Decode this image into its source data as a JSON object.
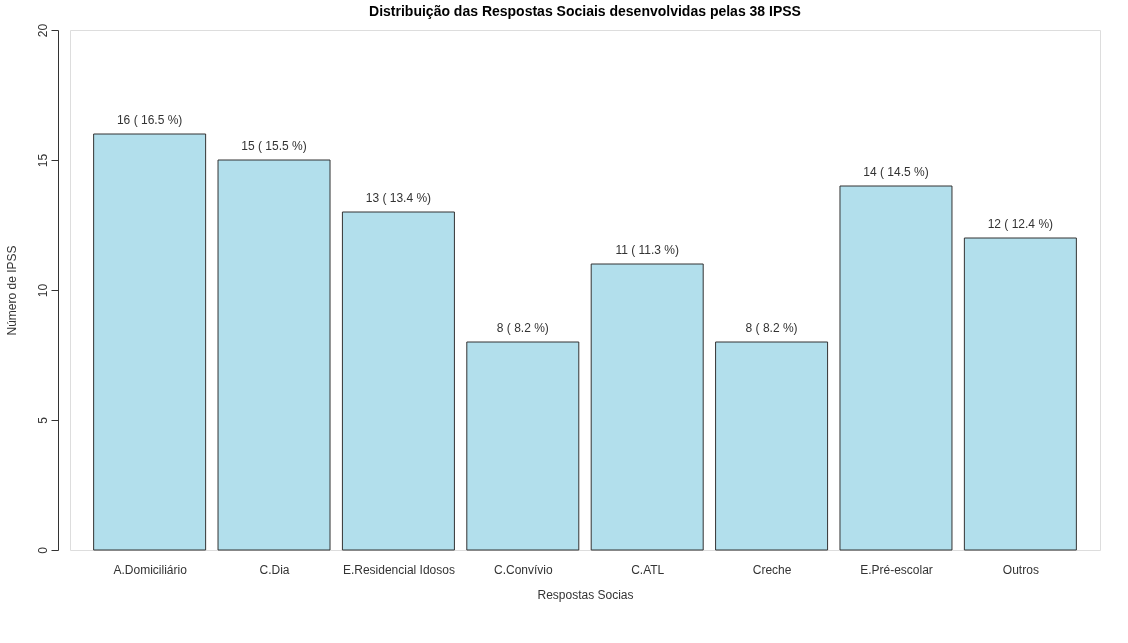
{
  "chart_data": {
    "type": "bar",
    "title": "Distribuição das Respostas Sociais desenvolvidas pelas 38 IPSS",
    "xlabel": "Respostas Socias",
    "ylabel": "Número de IPSS",
    "categories": [
      "A.Domiciliário",
      "C.Dia",
      "E.Residencial Idosos",
      "C.Convívio",
      "C.ATL",
      "Creche",
      "E.Pré-escolar",
      "Outros"
    ],
    "values": [
      16,
      15,
      13,
      8,
      11,
      8,
      14,
      12
    ],
    "value_labels": [
      "16 ( 16.5 %)",
      "15 ( 15.5 %)",
      "13 ( 13.4 %)",
      "8 ( 8.2 %)",
      "11 ( 11.3 %)",
      "8 ( 8.2 %)",
      "14 ( 14.5 %)",
      "12 ( 12.4 %)"
    ],
    "color": "#b2dfec",
    "ylim": [
      0,
      20
    ],
    "yticks": [
      0,
      5,
      10,
      15,
      20
    ],
    "grid": false
  }
}
